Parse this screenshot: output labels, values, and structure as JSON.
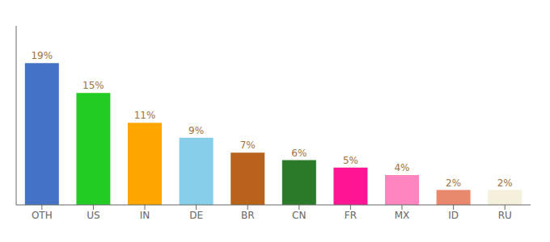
{
  "chart_data": {
    "type": "bar",
    "categories": [
      "OTH",
      "US",
      "IN",
      "DE",
      "BR",
      "CN",
      "FR",
      "MX",
      "ID",
      "RU"
    ],
    "values": [
      19,
      15,
      11,
      9,
      7,
      6,
      5,
      4,
      2,
      2
    ],
    "value_labels": [
      "19%",
      "15%",
      "11%",
      "9%",
      "7%",
      "6%",
      "5%",
      "4%",
      "2%",
      "2%"
    ],
    "colors": [
      "#4472c4",
      "#22cc22",
      "#ffa500",
      "#87ceeb",
      "#b8621b",
      "#2a7a2a",
      "#ff1493",
      "#ff85c0",
      "#e8896e",
      "#f5f0dc"
    ],
    "ylim": [
      0,
      24
    ],
    "data_labels": true,
    "tick_labels": "x",
    "grid": false
  }
}
